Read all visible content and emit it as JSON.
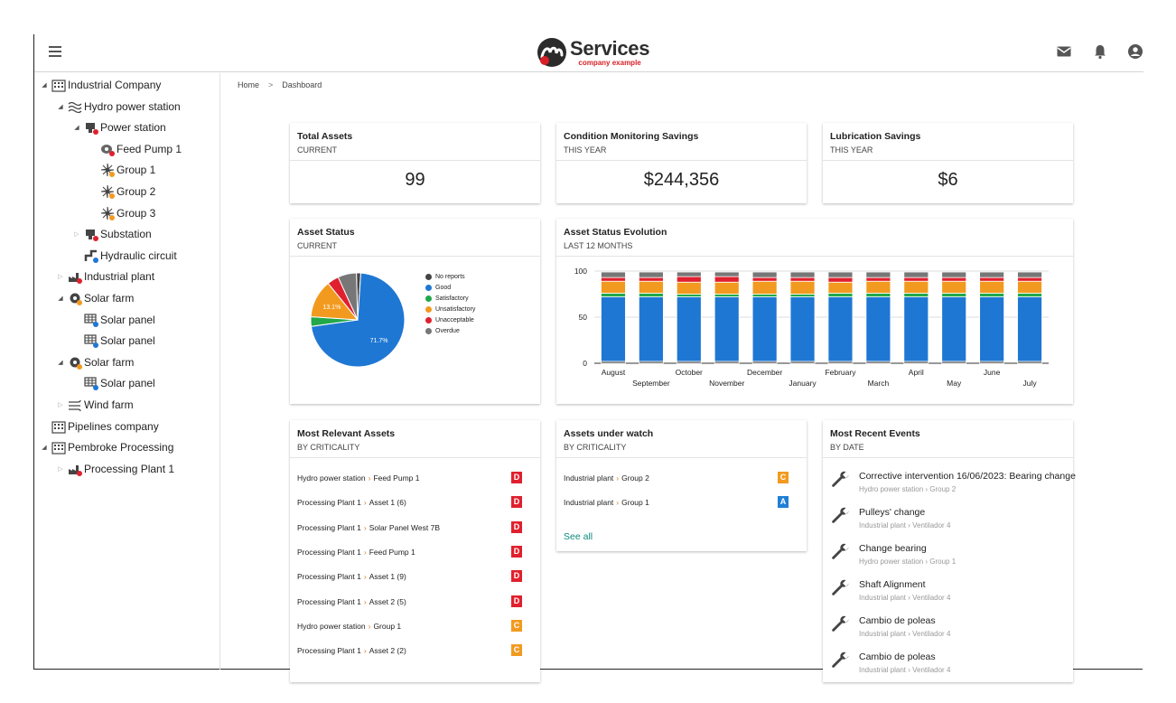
{
  "header": {
    "app_title": "Services",
    "app_subtitle": "company example",
    "icons": [
      "menu-icon",
      "mail-icon",
      "bell-icon",
      "account-icon"
    ]
  },
  "sidebar": {
    "items": [
      {
        "label": "Industrial Company",
        "icon": "building-icon"
      },
      {
        "label": "Hydro power station",
        "icon": "waves-icon"
      },
      {
        "label": "Power station",
        "icon": "station-icon"
      },
      {
        "label": "Feed Pump 1",
        "icon": "pump-icon"
      },
      {
        "label": "Group 1",
        "icon": "turbine-icon"
      },
      {
        "label": "Group 2",
        "icon": "turbine-icon"
      },
      {
        "label": "Group 3",
        "icon": "turbine-icon"
      },
      {
        "label": "Substation",
        "icon": "station-icon"
      },
      {
        "label": "Hydraulic circuit",
        "icon": "pipe-icon"
      },
      {
        "label": "Industrial plant",
        "icon": "factory-icon"
      },
      {
        "label": "Solar farm",
        "icon": "gear-icon"
      },
      {
        "label": "Solar panel",
        "icon": "solar-panel-icon"
      },
      {
        "label": "Solar panel",
        "icon": "solar-panel-icon"
      },
      {
        "label": "Solar farm",
        "icon": "gear-icon"
      },
      {
        "label": "Solar panel",
        "icon": "solar-panel-icon"
      },
      {
        "label": "Wind farm",
        "icon": "wind-icon"
      },
      {
        "label": "Pipelines company",
        "icon": "building-icon"
      },
      {
        "label": "Pembroke Processing",
        "icon": "building-icon"
      },
      {
        "label": "Processing Plant 1",
        "icon": "factory-icon"
      }
    ]
  },
  "breadcrumb": {
    "home": "Home",
    "separator": ">",
    "current": "Dashboard"
  },
  "cards": {
    "total_assets": {
      "title": "Total Assets",
      "subtitle": "CURRENT",
      "value": "99"
    },
    "cm_savings": {
      "title": "Condition Monitoring Savings",
      "subtitle": "THIS YEAR",
      "value": "$244,356"
    },
    "lub_savings": {
      "title": "Lubrication Savings",
      "subtitle": "THIS YEAR",
      "value": "$6"
    },
    "asset_status": {
      "title": "Asset Status",
      "subtitle": "CURRENT"
    },
    "evolution": {
      "title": "Asset Status Evolution",
      "subtitle": "LAST 12 MONTHS"
    },
    "relevant": {
      "title": "Most Relevant Assets",
      "subtitle": "BY CRITICALITY",
      "rows": [
        {
          "parent": "Hydro power station",
          "asset": "Feed Pump 1",
          "badge": "D"
        },
        {
          "parent": "Processing Plant 1",
          "asset": "Asset 1 (6)",
          "badge": "D"
        },
        {
          "parent": "Processing Plant 1",
          "asset": "Solar Panel West 7B",
          "badge": "D"
        },
        {
          "parent": "Processing Plant 1",
          "asset": "Feed Pump 1",
          "badge": "D"
        },
        {
          "parent": "Processing Plant 1",
          "asset": "Asset 1 (9)",
          "badge": "D"
        },
        {
          "parent": "Processing Plant 1",
          "asset": "Asset 2 (5)",
          "badge": "D"
        },
        {
          "parent": "Hydro power station",
          "asset": "Group 1",
          "badge": "C"
        },
        {
          "parent": "Processing Plant 1",
          "asset": "Asset 2 (2)",
          "badge": "C"
        }
      ]
    },
    "watch": {
      "title": "Assets under watch",
      "subtitle": "BY CRITICALITY",
      "see_all": "See all",
      "rows": [
        {
          "parent": "Industrial plant",
          "asset": "Group 2",
          "badge": "C"
        },
        {
          "parent": "Industrial plant",
          "asset": "Group 1",
          "badge": "A"
        }
      ]
    },
    "events": {
      "title": "Most Recent Events",
      "subtitle": "BY DATE",
      "items": [
        {
          "title": "Corrective intervention 16/06/2023: Bearing change",
          "path": "Hydro power station › Group 2"
        },
        {
          "title": "Pulleys' change",
          "path": "Industrial plant › Ventilador 4"
        },
        {
          "title": "Change bearing",
          "path": "Hydro power station › Group 1"
        },
        {
          "title": "Shaft Alignment",
          "path": "Industrial plant › Ventilador 4"
        },
        {
          "title": "Cambio de poleas",
          "path": "Industrial plant › Ventilador 4"
        },
        {
          "title": "Cambio de poleas",
          "path": "Industrial plant › Ventilador 4"
        }
      ]
    }
  },
  "badge_colors": {
    "D": "#e0202e",
    "C": "#f29a1f",
    "A": "#1f7fd6"
  },
  "status_colors": {
    "No reports": "#444444",
    "Good": "#1f77d4",
    "Satisfactory": "#22a84a",
    "Unsatisfactory": "#f29a1f",
    "Unacceptable": "#e0202e",
    "Overdue": "#777777"
  },
  "chart_data": [
    {
      "type": "pie",
      "categories": [
        "No reports",
        "Good",
        "Satisfactory",
        "Unsatisfactory",
        "Unacceptable",
        "Overdue"
      ],
      "values": [
        1.5,
        71.7,
        3.3,
        13.1,
        4.0,
        6.4
      ],
      "data_labels": [
        "",
        "71.7%",
        "",
        "13.1%",
        "",
        ""
      ],
      "legend": "right"
    },
    {
      "type": "bar",
      "stacked": true,
      "categories": [
        "August",
        "September",
        "October",
        "November",
        "December",
        "January",
        "February",
        "March",
        "April",
        "May",
        "June",
        "July"
      ],
      "series": [
        {
          "name": "No reports",
          "values": [
            2,
            2,
            2,
            2,
            2,
            2,
            2,
            2,
            2,
            2,
            2,
            2
          ]
        },
        {
          "name": "Good",
          "values": [
            70,
            70,
            70,
            70,
            70,
            70,
            70,
            70,
            70,
            70,
            70,
            70
          ]
        },
        {
          "name": "Satisfactory",
          "values": [
            4,
            4,
            3,
            3,
            3,
            3,
            4,
            4,
            4,
            4,
            4,
            4
          ]
        },
        {
          "name": "Unsatisfactory",
          "values": [
            13,
            13,
            13,
            13,
            14,
            14,
            12,
            13,
            13,
            13,
            13,
            13
          ]
        },
        {
          "name": "Unacceptable",
          "values": [
            4,
            4,
            6,
            6,
            4,
            4,
            5,
            4,
            4,
            4,
            4,
            4
          ]
        },
        {
          "name": "Overdue",
          "values": [
            6,
            6,
            5,
            5,
            6,
            6,
            6,
            6,
            6,
            6,
            6,
            6
          ]
        }
      ],
      "yticks": [
        0,
        50,
        100
      ],
      "ylim": [
        0,
        100
      ],
      "grid": true
    }
  ]
}
